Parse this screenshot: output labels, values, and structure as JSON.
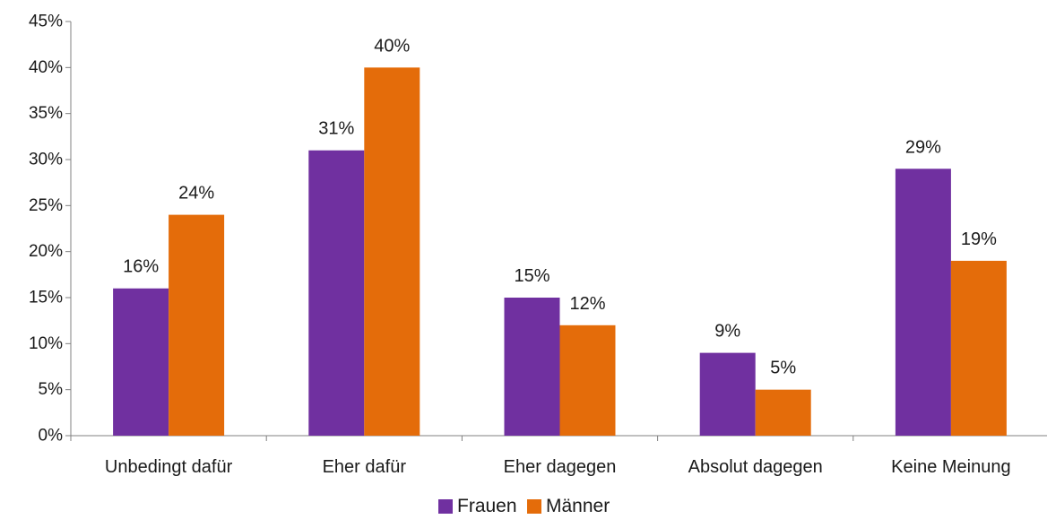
{
  "chart_data": {
    "type": "bar",
    "categories": [
      "Unbedingt dafür",
      "Eher dafür",
      "Eher dagegen",
      "Absolut dagegen",
      "Keine Meinung"
    ],
    "series": [
      {
        "name": "Frauen",
        "values": [
          16,
          31,
          15,
          9,
          29
        ],
        "value_labels": [
          "16%",
          "31%",
          "15%",
          "9%",
          "29%"
        ],
        "color": "#7030A0"
      },
      {
        "name": "Männer",
        "values": [
          24,
          40,
          12,
          5,
          19
        ],
        "value_labels": [
          "24%",
          "40%",
          "12%",
          "5%",
          "19%"
        ],
        "color": "#E46C0A"
      }
    ],
    "yticks": [
      0,
      5,
      10,
      15,
      20,
      25,
      30,
      35,
      40,
      45
    ],
    "ytick_labels": [
      "0%",
      "5%",
      "10%",
      "15%",
      "20%",
      "25%",
      "30%",
      "35%",
      "40%",
      "45%"
    ],
    "ylim": [
      0,
      45
    ],
    "title": "",
    "xlabel": "",
    "ylabel": "",
    "grid": false,
    "legend_position": "bottom"
  }
}
